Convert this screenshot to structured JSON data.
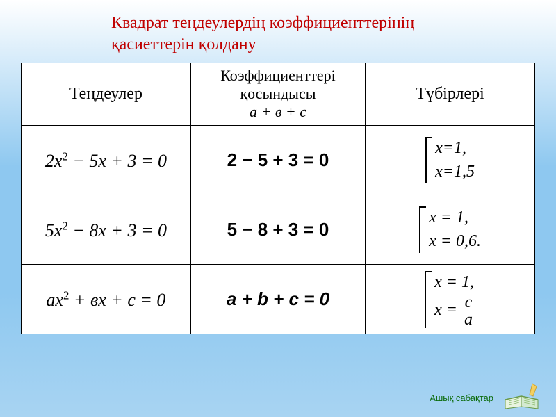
{
  "title_line1": "Квадрат теңдеулердің коэффициенттерінің",
  "title_line2": "қасиеттерін қолдану",
  "headers": {
    "col1": "Теңдеулер",
    "col2_line1": "Коэффициенттері",
    "col2_line2": "қосындысы",
    "col2_formula": "а + в + с",
    "col3": "Түбірлері"
  },
  "rows": [
    {
      "equation_html": "2<i>x</i><sup>2</sup> − 5<i>x</i> + 3 = 0",
      "sum": "2 − 5 + 3 = 0",
      "root1": "x=1,",
      "root2": "x=1,5"
    },
    {
      "equation_html": "5<i>x</i><sup>2</sup> − 8<i>x</i> + 3 = 0",
      "sum": "5 − 8 + 3 = 0",
      "root1": "x = 1,",
      "root2": "x = 0,6."
    },
    {
      "equation_html": "<i>ах</i><sup>2</sup> + <i>вх</i> + <i>с</i> = 0",
      "sum": "a + b + c = 0",
      "root1": "x = 1,",
      "root2_frac": {
        "lhs": "x = ",
        "num": "c",
        "den": "a"
      }
    }
  ],
  "footer_link": "Ашық сабақтар",
  "colors": {
    "title": "#c00000",
    "border": "#000000",
    "link": "#0a6b0a",
    "bg_top": "#ffffff",
    "bg_mid": "#8ec8f0"
  },
  "fonts": {
    "title_size": 24,
    "header_size": 24,
    "cell_size": 26
  }
}
